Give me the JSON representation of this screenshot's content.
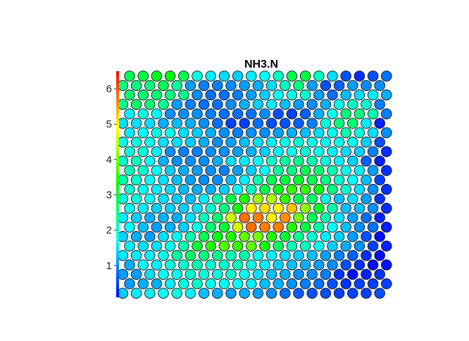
{
  "chart_data": {
    "type": "heatmap",
    "subtype": "som-hexagonal-property-map",
    "title": "NH3.N",
    "colorbar": {
      "ticks": [
        1,
        2,
        3,
        4,
        5,
        6
      ],
      "range": [
        0.1,
        6.5
      ],
      "colors": [
        "#0000ff",
        "#00ffff",
        "#00ff00",
        "#ffff00",
        "#ff0000"
      ]
    },
    "grid": {
      "cols": 20,
      "rows": 24,
      "row_offset": "odd rows from the top shifted left by half a cell"
    },
    "values": [
      [
        2.8,
        2.9,
        3.1,
        3.2,
        2.8,
        1.9,
        1.6,
        1.5,
        1.4,
        1.6,
        1.7,
        2.1,
        2.8,
        2.9,
        2.1,
        1.5,
        0.6,
        0.4,
        0.6,
        0.8
      ],
      [
        2.5,
        2.5,
        2.5,
        2.8,
        2.3,
        1.1,
        0.9,
        0.9,
        1.0,
        1.1,
        1.2,
        1.5,
        2.1,
        2.5,
        1.1,
        0.6,
        0.7,
        1.1,
        1.0,
        1.0
      ],
      [
        2.6,
        2.6,
        2.6,
        2.5,
        2.4,
        1.0,
        0.8,
        0.8,
        0.9,
        1.1,
        1.4,
        1.7,
        1.9,
        2.0,
        1.1,
        0.8,
        1.3,
        1.5,
        1.6,
        1.2
      ],
      [
        2.4,
        2.6,
        2.6,
        2.4,
        1.1,
        0.9,
        0.8,
        0.8,
        1.0,
        1.2,
        1.4,
        1.6,
        1.3,
        1.1,
        1.0,
        1.2,
        1.8,
        2.1,
        2.0,
        0.9
      ],
      [
        1.6,
        1.9,
        1.7,
        1.0,
        1.0,
        1.0,
        0.9,
        0.8,
        0.8,
        0.8,
        1.0,
        0.6,
        0.5,
        0.7,
        1.2,
        1.8,
        2.5,
        2.5,
        2.2,
        0.9
      ],
      [
        1.5,
        1.5,
        1.5,
        1.2,
        1.3,
        1.2,
        1.0,
        0.8,
        0.5,
        0.5,
        0.8,
        0.6,
        0.6,
        0.7,
        0.9,
        1.9,
        2.5,
        2.6,
        1.6,
        0.3
      ],
      [
        1.6,
        1.7,
        1.9,
        1.8,
        1.5,
        1.4,
        1.2,
        1.0,
        0.9,
        1.0,
        1.0,
        1.1,
        1.2,
        1.3,
        1.5,
        1.8,
        2.2,
        1.9,
        1.5,
        1.0
      ],
      [
        1.8,
        1.9,
        1.7,
        1.5,
        1.5,
        1.4,
        1.2,
        1.0,
        1.1,
        1.3,
        1.5,
        1.6,
        1.8,
        1.9,
        1.8,
        1.7,
        1.8,
        1.8,
        1.4,
        0.6
      ],
      [
        1.9,
        1.9,
        1.6,
        1.0,
        0.9,
        0.9,
        1.0,
        1.0,
        1.1,
        1.2,
        1.4,
        1.6,
        1.8,
        2.0,
        1.8,
        1.6,
        1.5,
        1.4,
        0.9,
        0.4
      ],
      [
        2.0,
        2.1,
        1.7,
        1.2,
        1.0,
        1.0,
        1.0,
        1.2,
        1.5,
        1.6,
        1.7,
        2.0,
        2.3,
        2.4,
        2.2,
        1.9,
        1.6,
        1.4,
        0.7,
        0.3
      ],
      [
        2.1,
        2.0,
        1.7,
        1.4,
        1.2,
        1.1,
        1.0,
        0.9,
        1.1,
        1.4,
        1.7,
        2.3,
        2.5,
        2.8,
        2.6,
        2.2,
        1.8,
        1.6,
        1.1,
        0.4
      ],
      [
        2.2,
        2.0,
        1.7,
        1.5,
        1.3,
        1.1,
        1.0,
        1.0,
        1.3,
        1.6,
        2.2,
        2.8,
        2.9,
        3.0,
        2.8,
        2.5,
        2.0,
        1.7,
        1.3,
        0.5
      ],
      [
        2.0,
        1.8,
        1.6,
        1.5,
        1.3,
        1.2,
        1.2,
        1.4,
        1.7,
        2.1,
        2.8,
        3.2,
        3.6,
        3.6,
        3.2,
        2.5,
        2.0,
        1.5,
        1.0,
        0.4
      ],
      [
        1.9,
        1.9,
        1.7,
        1.5,
        1.4,
        1.3,
        1.6,
        2.2,
        2.8,
        3.5,
        4.3,
        4.4,
        3.6,
        2.8,
        2.6,
        1.9,
        1.3,
        1.5,
        1.1,
        0.4
      ],
      [
        1.8,
        1.6,
        1.4,
        1.4,
        1.4,
        1.5,
        2.0,
        2.5,
        3.4,
        5.0,
        5.1,
        5.0,
        5.3,
        4.2,
        3.0,
        2.2,
        1.3,
        1.3,
        1.0,
        0.4
      ],
      [
        1.6,
        1.4,
        1.2,
        1.2,
        1.2,
        1.5,
        2.1,
        2.6,
        4.6,
        5.8,
        5.7,
        5.0,
        5.6,
        4.0,
        2.8,
        2.2,
        1.5,
        1.1,
        0.8,
        0.3
      ],
      [
        1.7,
        1.3,
        1.1,
        1.2,
        1.4,
        1.8,
        2.6,
        3.0,
        4.6,
        5.8,
        5.7,
        5.7,
        3.5,
        2.9,
        2.3,
        1.7,
        1.3,
        1.0,
        0.8,
        0.3
      ],
      [
        1.4,
        1.2,
        1.1,
        1.5,
        1.8,
        2.2,
        2.8,
        3.2,
        3.5,
        3.9,
        4.0,
        3.5,
        3.0,
        2.4,
        2.0,
        1.6,
        1.4,
        1.1,
        0.6,
        0.2
      ],
      [
        1.6,
        1.5,
        1.5,
        1.8,
        2.2,
        3.0,
        3.5,
        3.8,
        3.6,
        3.9,
        3.4,
        2.7,
        2.1,
        2.1,
        1.8,
        1.4,
        1.2,
        1.0,
        0.5,
        0.3
      ],
      [
        1.6,
        1.6,
        1.6,
        1.8,
        2.3,
        2.7,
        2.5,
        2.4,
        2.2,
        2.2,
        1.8,
        1.6,
        1.5,
        1.4,
        1.3,
        1.1,
        0.9,
        0.7,
        0.4,
        0.2
      ],
      [
        1.2,
        1.7,
        1.6,
        1.9,
        2.0,
        2.2,
        2.0,
        2.0,
        2.1,
        1.9,
        1.6,
        1.4,
        1.3,
        1.2,
        1.1,
        1.0,
        0.6,
        0.4,
        0.2,
        0.2
      ],
      [
        1.1,
        1.1,
        1.5,
        1.7,
        1.8,
        2.0,
        1.9,
        1.9,
        2.0,
        1.8,
        1.5,
        1.3,
        1.2,
        1.0,
        1.0,
        0.9,
        0.4,
        0.2,
        0.3,
        0.4
      ],
      [
        1.1,
        1.2,
        1.2,
        1.6,
        1.9,
        2.0,
        1.8,
        1.8,
        1.7,
        1.6,
        1.3,
        1.2,
        1.0,
        0.9,
        0.8,
        0.6,
        0.4,
        0.5,
        0.5,
        0.5
      ],
      [
        1.4,
        1.6,
        1.6,
        1.7,
        1.9,
        1.6,
        1.3,
        1.2,
        1.1,
        1.2,
        1.1,
        1.0,
        0.8,
        0.7,
        0.6,
        0.6,
        0.5,
        0.5,
        0.5,
        0.6
      ]
    ]
  }
}
